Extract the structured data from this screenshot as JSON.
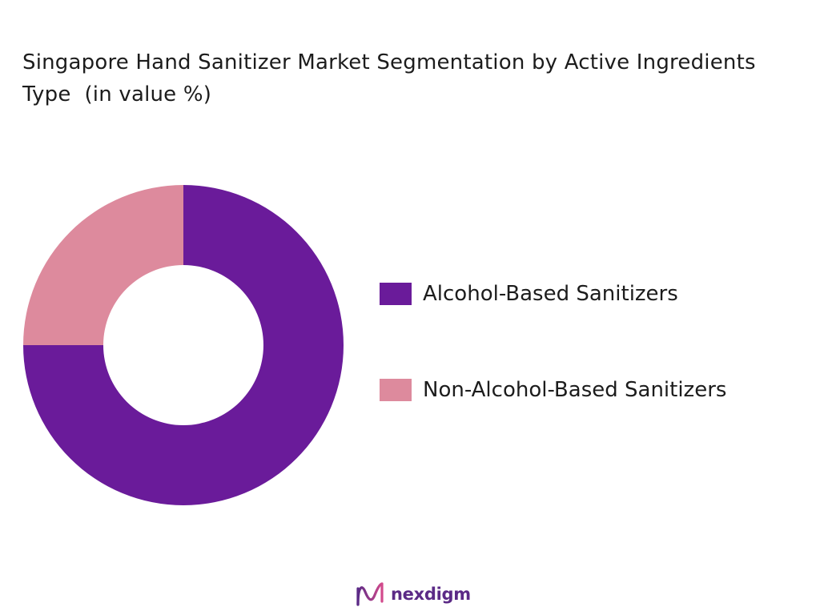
{
  "title": "Singapore Hand Sanitizer Market Segmentation by Active Ingredients Type  (in value %)",
  "chart_data": {
    "type": "pie",
    "variant": "donut",
    "title": "Singapore Hand Sanitizer Market Segmentation by Active Ingredients Type  (in value %)",
    "categories": [
      "Alcohol-Based Sanitizers",
      "Non-Alcohol-Based Sanitizers"
    ],
    "values": [
      75,
      25
    ],
    "colors": [
      "#6a1b9a",
      "#dd8a9d"
    ],
    "legend_position": "right"
  },
  "legend": [
    {
      "label": "Alcohol-Based Sanitizers",
      "color": "#6a1b9a"
    },
    {
      "label": "Non-Alcohol-Based Sanitizers",
      "color": "#dd8a9d"
    }
  ],
  "brand": {
    "name": "nexdigm",
    "logo_icon": "nexdigm-wave-logo-icon",
    "color": "#5b2a86"
  }
}
